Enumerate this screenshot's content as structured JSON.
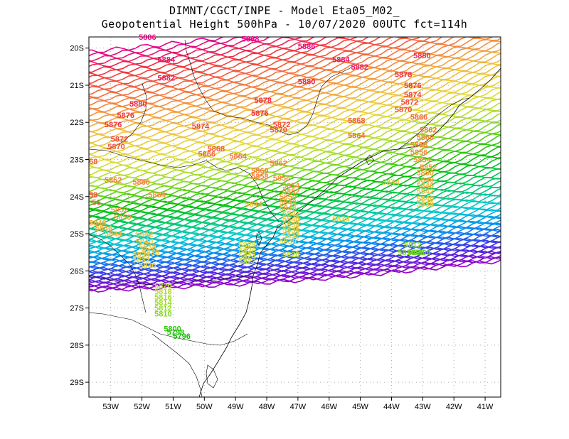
{
  "header": {
    "line1": "DIMNT/CGCT/INPE  -   Model Eta05_M02_",
    "line2": "Geopotential Height 500hPa  -   10/07/2020 00UTC fct=114h"
  },
  "map": {
    "projection": "lat-lon",
    "lon_range": [
      -53.7,
      -40.5
    ],
    "lat_range": [
      -29.4,
      -19.7
    ],
    "x_ticks": [
      {
        "value": -53,
        "label": "53W"
      },
      {
        "value": -52,
        "label": "52W"
      },
      {
        "value": -51,
        "label": "51W"
      },
      {
        "value": -50,
        "label": "50W"
      },
      {
        "value": -49,
        "label": "49W"
      },
      {
        "value": -48,
        "label": "48W"
      },
      {
        "value": -47,
        "label": "47W"
      },
      {
        "value": -46,
        "label": "46W"
      },
      {
        "value": -45,
        "label": "45W"
      },
      {
        "value": -44,
        "label": "44W"
      },
      {
        "value": -43,
        "label": "43W"
      },
      {
        "value": -42,
        "label": "42W"
      },
      {
        "value": -41,
        "label": "41W"
      }
    ],
    "y_ticks": [
      {
        "value": -20,
        "label": "20S"
      },
      {
        "value": -21,
        "label": "21S"
      },
      {
        "value": -22,
        "label": "22S"
      },
      {
        "value": -23,
        "label": "23S"
      },
      {
        "value": -24,
        "label": "24S"
      },
      {
        "value": -25,
        "label": "25S"
      },
      {
        "value": -26,
        "label": "26S"
      },
      {
        "value": -27,
        "label": "27S"
      },
      {
        "value": -28,
        "label": "28S"
      },
      {
        "value": -29,
        "label": "29S"
      }
    ],
    "contour_interval": 2,
    "contour_levels_range": [
      5700,
      5888
    ],
    "contour_labels": [
      {
        "text": "5886",
        "lon": -52.1,
        "lat": -19.7
      },
      {
        "text": "5888",
        "lon": -48.8,
        "lat": -19.75
      },
      {
        "text": "5886",
        "lon": -47.0,
        "lat": -19.95
      },
      {
        "text": "5884",
        "lon": -51.5,
        "lat": -20.3
      },
      {
        "text": "5884",
        "lon": -45.9,
        "lat": -20.3
      },
      {
        "text": "5882",
        "lon": -45.3,
        "lat": -20.5
      },
      {
        "text": "5880",
        "lon": -43.3,
        "lat": -20.2
      },
      {
        "text": "5882",
        "lon": -51.5,
        "lat": -20.8
      },
      {
        "text": "5880",
        "lon": -47.0,
        "lat": -20.9
      },
      {
        "text": "5878",
        "lon": -43.9,
        "lat": -20.7
      },
      {
        "text": "5876",
        "lon": -43.6,
        "lat": -21.0
      },
      {
        "text": "5874",
        "lon": -43.6,
        "lat": -21.25
      },
      {
        "text": "5872",
        "lon": -43.7,
        "lat": -21.45
      },
      {
        "text": "5870",
        "lon": -43.9,
        "lat": -21.65
      },
      {
        "text": "5880",
        "lon": -52.4,
        "lat": -21.5
      },
      {
        "text": "5878",
        "lon": -48.4,
        "lat": -21.4
      },
      {
        "text": "5876",
        "lon": -52.8,
        "lat": -21.8
      },
      {
        "text": "5876",
        "lon": -48.5,
        "lat": -21.75
      },
      {
        "text": "5876",
        "lon": -53.2,
        "lat": -22.05
      },
      {
        "text": "5874",
        "lon": -50.4,
        "lat": -22.1
      },
      {
        "text": "5872",
        "lon": -47.8,
        "lat": -22.05
      },
      {
        "text": "5870",
        "lon": -47.9,
        "lat": -22.2
      },
      {
        "text": "5868",
        "lon": -45.4,
        "lat": -21.95
      },
      {
        "text": "5866",
        "lon": -43.4,
        "lat": -21.85
      },
      {
        "text": "5864",
        "lon": -45.4,
        "lat": -22.35
      },
      {
        "text": "5862",
        "lon": -43.1,
        "lat": -22.2
      },
      {
        "text": "5860",
        "lon": -43.2,
        "lat": -22.4
      },
      {
        "text": "5858",
        "lon": -43.4,
        "lat": -22.6
      },
      {
        "text": "5856",
        "lon": -43.4,
        "lat": -22.8
      },
      {
        "text": "5854",
        "lon": -43.3,
        "lat": -23.0
      },
      {
        "text": "5852",
        "lon": -43.1,
        "lat": -23.2
      },
      {
        "text": "5850",
        "lon": -43.2,
        "lat": -23.35
      },
      {
        "text": "5848",
        "lon": -43.2,
        "lat": -23.55
      },
      {
        "text": "5846",
        "lon": -43.2,
        "lat": -23.7
      },
      {
        "text": "5844",
        "lon": -44.3,
        "lat": -23.6
      },
      {
        "text": "5842",
        "lon": -43.2,
        "lat": -23.85
      },
      {
        "text": "5840",
        "lon": -43.2,
        "lat": -24.05
      },
      {
        "text": "5838",
        "lon": -43.2,
        "lat": -24.2
      },
      {
        "text": "5872",
        "lon": -53.0,
        "lat": -22.45
      },
      {
        "text": "5870",
        "lon": -53.1,
        "lat": -22.65
      },
      {
        "text": "5868",
        "lon": -49.9,
        "lat": -22.7
      },
      {
        "text": "5866",
        "lon": -50.2,
        "lat": -22.85
      },
      {
        "text": "5864",
        "lon": -49.2,
        "lat": -22.9
      },
      {
        "text": "5862",
        "lon": -47.9,
        "lat": -23.1
      },
      {
        "text": "5860",
        "lon": -48.5,
        "lat": -23.3
      },
      {
        "text": "5858",
        "lon": -48.5,
        "lat": -23.45
      },
      {
        "text": "5856",
        "lon": -47.8,
        "lat": -23.5
      },
      {
        "text": "5854",
        "lon": -47.5,
        "lat": -23.7
      },
      {
        "text": "5852",
        "lon": -47.5,
        "lat": -23.85
      },
      {
        "text": "5850",
        "lon": -47.6,
        "lat": -24.0
      },
      {
        "text": "5848",
        "lon": -47.6,
        "lat": -24.15
      },
      {
        "text": "5846",
        "lon": -47.6,
        "lat": -24.3
      },
      {
        "text": "5844",
        "lon": -48.7,
        "lat": -24.2
      },
      {
        "text": "5842",
        "lon": -47.5,
        "lat": -24.45
      },
      {
        "text": "5840",
        "lon": -47.5,
        "lat": -24.6
      },
      {
        "text": "5838",
        "lon": -47.5,
        "lat": -24.75
      },
      {
        "text": "5836",
        "lon": -47.5,
        "lat": -24.9
      },
      {
        "text": "5834",
        "lon": -45.9,
        "lat": -24.6
      },
      {
        "text": "5832",
        "lon": -47.5,
        "lat": -25.05
      },
      {
        "text": "5830",
        "lon": -47.6,
        "lat": -25.2
      },
      {
        "text": "68",
        "lon": -53.7,
        "lat": -23.05
      },
      {
        "text": "5862",
        "lon": -53.2,
        "lat": -23.55
      },
      {
        "text": "5860",
        "lon": -52.3,
        "lat": -23.6
      },
      {
        "text": "5854",
        "lon": -51.8,
        "lat": -23.95
      },
      {
        "text": "58",
        "lon": -53.7,
        "lat": -23.95
      },
      {
        "text": "56",
        "lon": -53.6,
        "lat": -24.15
      },
      {
        "text": "5852",
        "lon": -53.0,
        "lat": -24.35
      },
      {
        "text": "5850",
        "lon": -52.9,
        "lat": -24.55
      },
      {
        "text": "5848",
        "lon": -53.7,
        "lat": -24.7
      },
      {
        "text": "5846",
        "lon": -53.5,
        "lat": -24.85
      },
      {
        "text": "5844",
        "lon": -53.2,
        "lat": -25.0
      },
      {
        "text": "5842",
        "lon": -52.2,
        "lat": -25.0
      },
      {
        "text": "5840",
        "lon": -52.2,
        "lat": -25.2
      },
      {
        "text": "5838",
        "lon": -52.1,
        "lat": -25.35
      },
      {
        "text": "5836",
        "lon": -52.0,
        "lat": -25.5
      },
      {
        "text": "5834",
        "lon": -52.3,
        "lat": -25.55
      },
      {
        "text": "5832",
        "lon": -52.3,
        "lat": -25.7
      },
      {
        "text": "5830",
        "lon": -52.1,
        "lat": -25.85
      },
      {
        "text": "5828",
        "lon": -48.9,
        "lat": -25.3
      },
      {
        "text": "5826",
        "lon": -48.9,
        "lat": -25.45
      },
      {
        "text": "5824",
        "lon": -48.9,
        "lat": -25.6
      },
      {
        "text": "5822",
        "lon": -48.9,
        "lat": -25.75
      },
      {
        "text": "5820",
        "lon": -47.5,
        "lat": -25.55
      },
      {
        "text": "5812",
        "lon": -43.6,
        "lat": -25.3
      },
      {
        "text": "5810",
        "lon": -43.8,
        "lat": -25.5
      },
      {
        "text": "5808",
        "lon": -43.5,
        "lat": -25.5
      },
      {
        "text": "5806",
        "lon": -43.3,
        "lat": -25.5
      },
      {
        "text": "5820",
        "lon": -51.6,
        "lat": -26.4
      },
      {
        "text": "5818",
        "lon": -51.6,
        "lat": -26.55
      },
      {
        "text": "5816",
        "lon": -51.6,
        "lat": -26.7
      },
      {
        "text": "5814",
        "lon": -51.6,
        "lat": -26.85
      },
      {
        "text": "5812",
        "lon": -51.6,
        "lat": -27.0
      },
      {
        "text": "5810",
        "lon": -51.6,
        "lat": -27.15
      },
      {
        "text": "5800",
        "lon": -51.3,
        "lat": -27.55
      },
      {
        "text": "5798",
        "lon": -51.2,
        "lat": -27.65
      },
      {
        "text": "5796",
        "lon": -51.0,
        "lat": -27.75
      }
    ]
  },
  "colors": {
    "frame": "#000000",
    "grid": "#aaaaaa",
    "coast": "#000000"
  }
}
